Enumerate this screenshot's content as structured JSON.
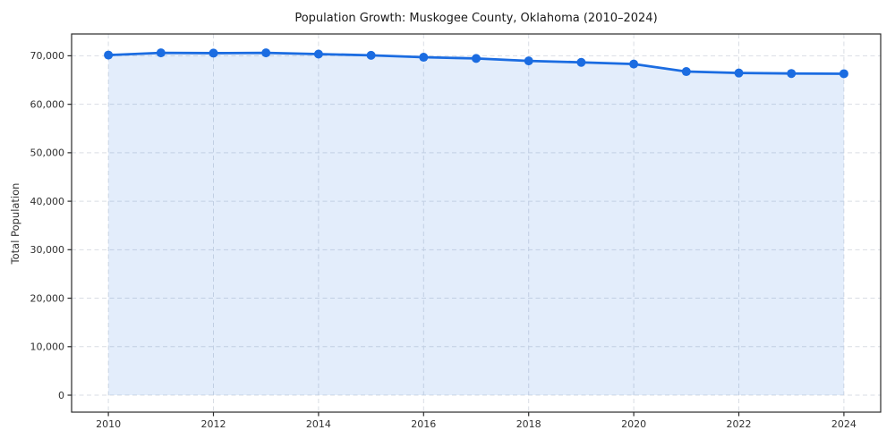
{
  "title": "Population Growth: Muskogee County, Oklahoma (2010–2024)",
  "chart_data": {
    "type": "area",
    "title": "Population Growth: Muskogee County, Oklahoma (2010–2024)",
    "xlabel": "",
    "ylabel": "Total Population",
    "x": [
      2010,
      2011,
      2012,
      2013,
      2014,
      2015,
      2016,
      2017,
      2018,
      2019,
      2020,
      2021,
      2022,
      2023,
      2024
    ],
    "series": [
      {
        "name": "Total Population",
        "values": [
          70150,
          70600,
          70550,
          70600,
          70350,
          70100,
          69700,
          69450,
          68950,
          68650,
          68300,
          66750,
          66450,
          66350,
          66300
        ]
      }
    ],
    "xlim": [
      2009.3,
      2024.7
    ],
    "ylim": [
      -3500,
      74500
    ],
    "x_ticks": [
      2010,
      2012,
      2014,
      2016,
      2018,
      2020,
      2022,
      2024
    ],
    "x_tick_labels": [
      "2010",
      "2012",
      "2014",
      "2016",
      "2018",
      "2020",
      "2022",
      "2024"
    ],
    "y_ticks": [
      0,
      10000,
      20000,
      30000,
      40000,
      50000,
      60000,
      70000
    ],
    "y_tick_labels": [
      "0",
      "10,000",
      "20,000",
      "30,000",
      "40,000",
      "50,000",
      "60,000",
      "70,000"
    ],
    "grid": true,
    "grid_style": "dashed",
    "legend_position": "none",
    "baseline_fill_to": 0,
    "colors": {
      "line": "#1b6ce1",
      "marker": "#1b6ce1",
      "fill": "rgba(27,108,225,0.12)",
      "grid": "#d9dde4",
      "spine": "#2a2a2a",
      "tick_text": "#303030",
      "title_text": "#1a1a1a",
      "background": "#ffffff"
    }
  }
}
